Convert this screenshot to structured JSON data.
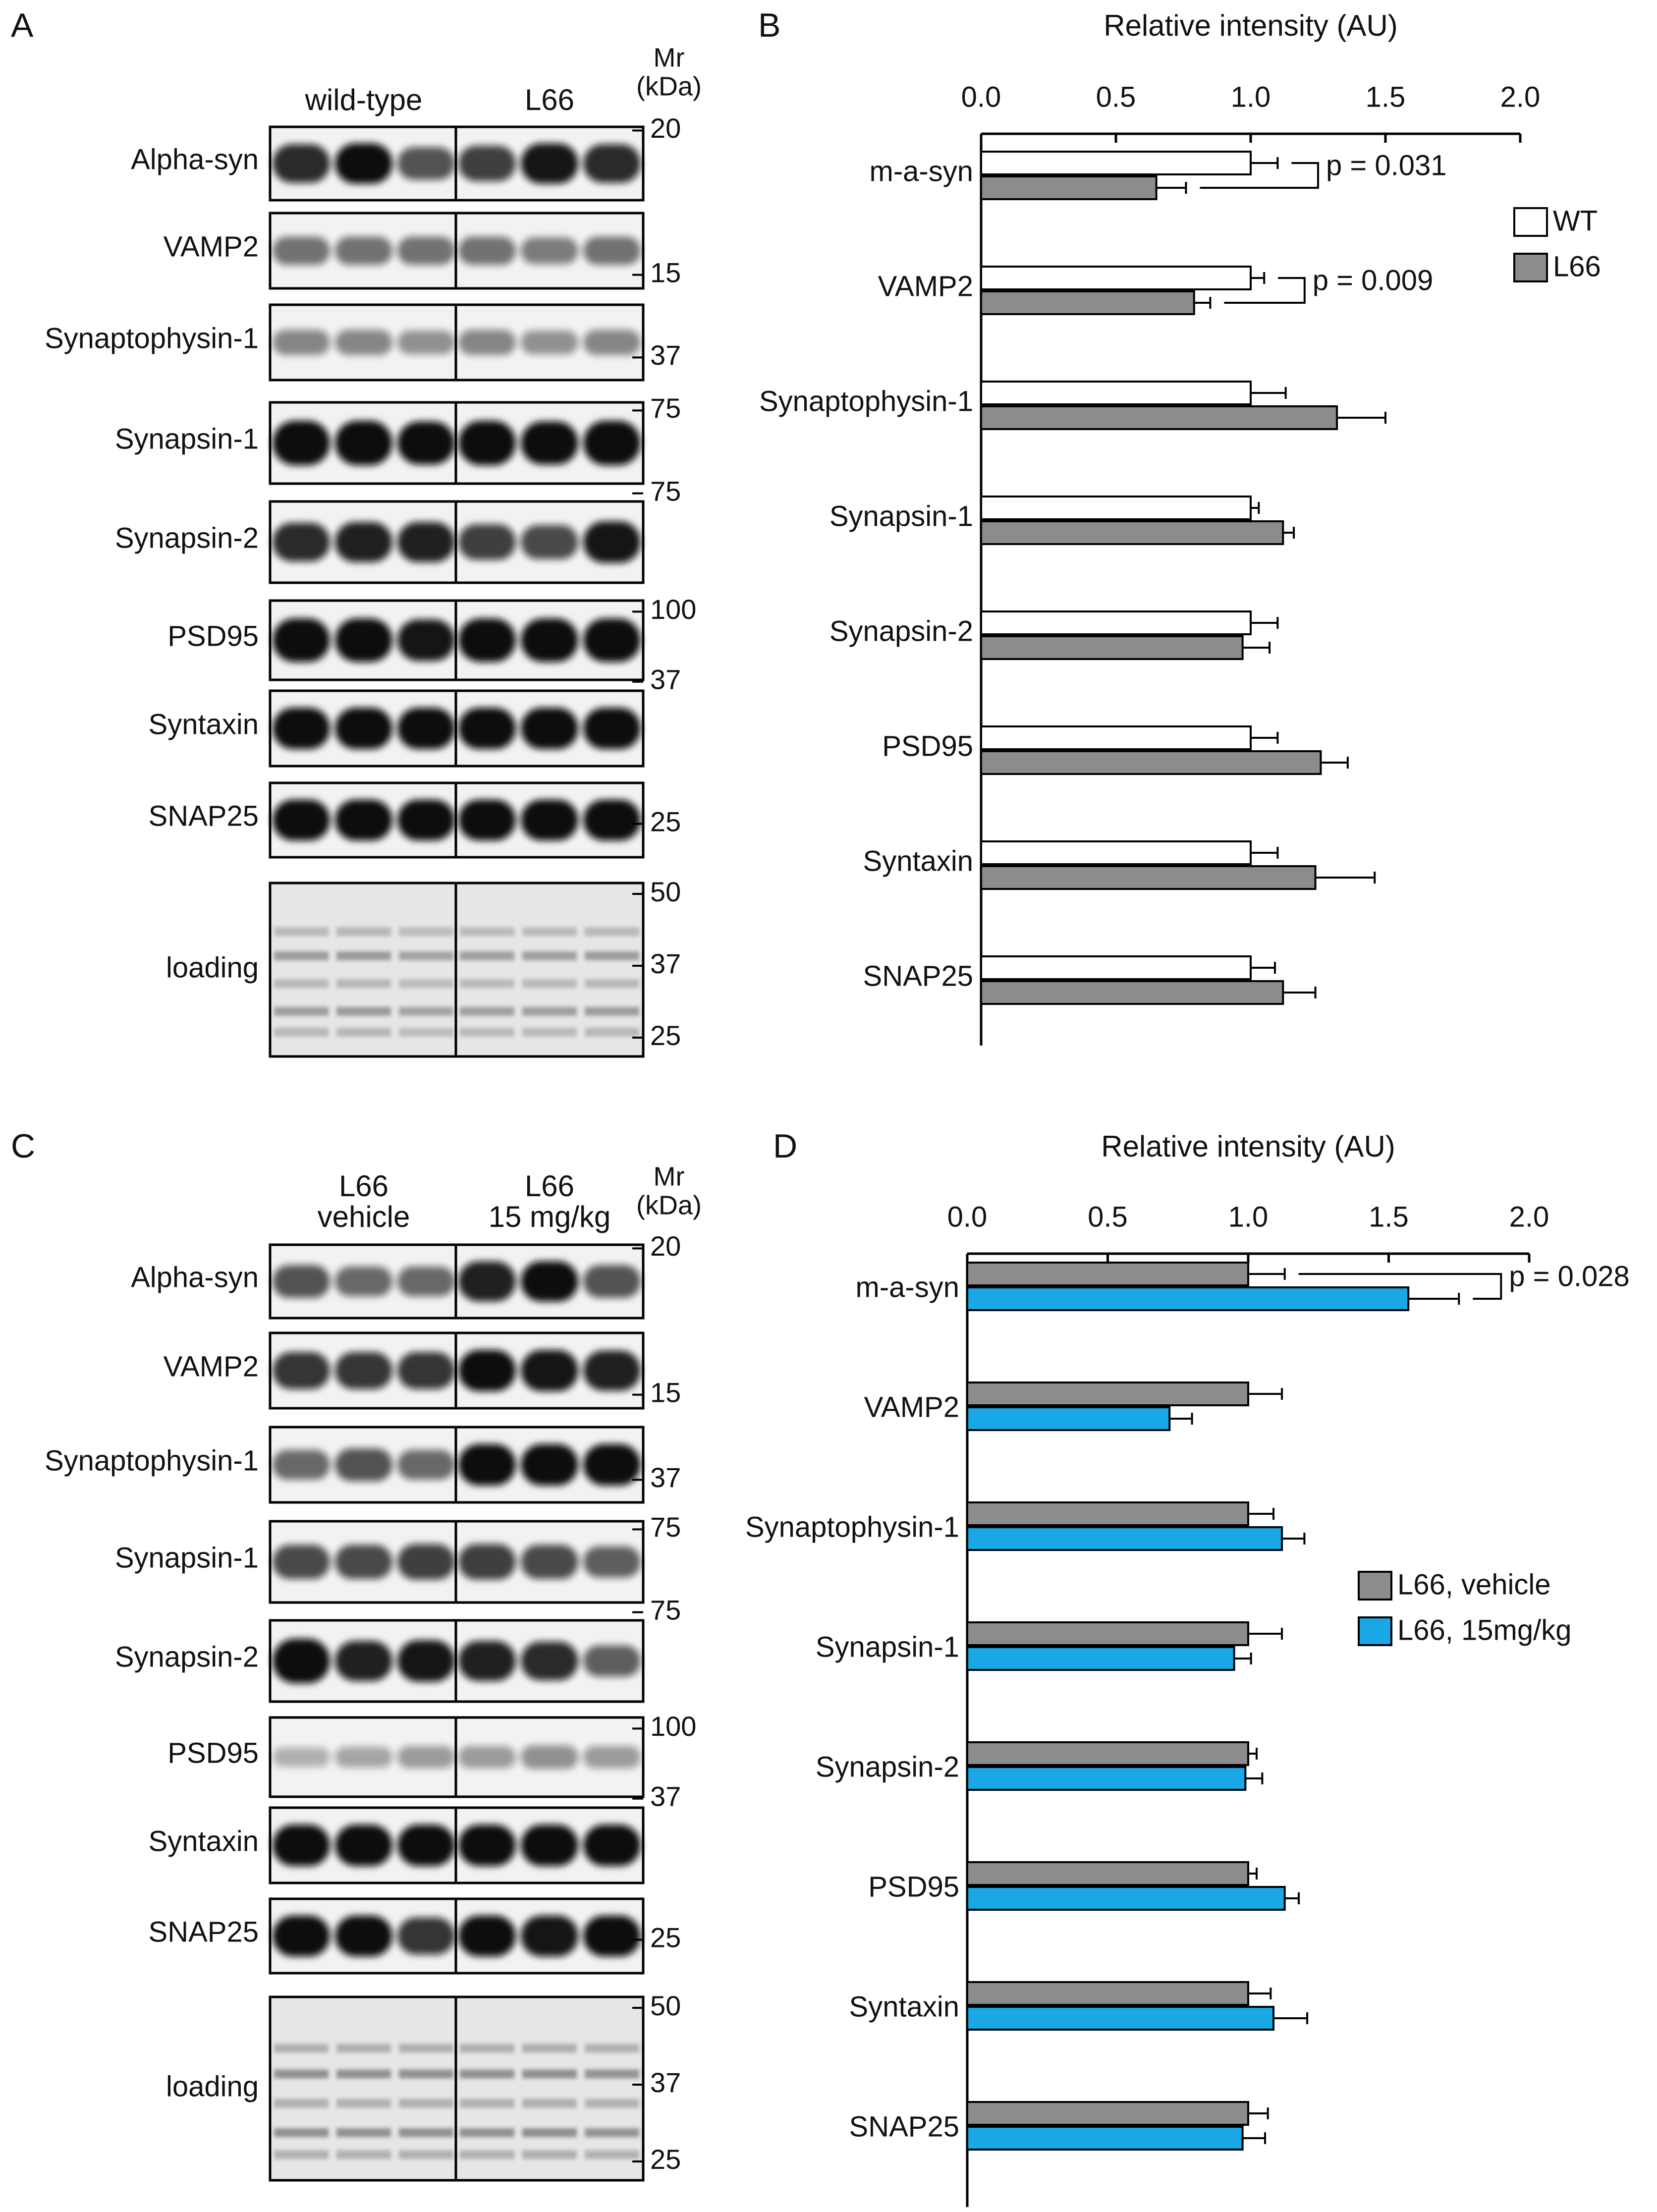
{
  "panels": {
    "a": {
      "letter": "A",
      "groups": [
        "wild-type",
        "L66"
      ],
      "mr_label": "Mr",
      "mr_unit": "(kDa)",
      "blots": [
        {
          "label": "Alpha-syn",
          "markers": [
            "20"
          ]
        },
        {
          "label": "VAMP2",
          "markers": [
            "15"
          ]
        },
        {
          "label": "Synaptophysin-1",
          "markers": [
            "37"
          ]
        },
        {
          "label": "Synapsin-1",
          "markers": [
            "75"
          ]
        },
        {
          "label": "Synapsin-2",
          "markers": [
            "75"
          ]
        },
        {
          "label": "PSD95",
          "markers": [
            "100"
          ]
        },
        {
          "label": "Syntaxin",
          "markers": [
            "37"
          ]
        },
        {
          "label": "SNAP25",
          "markers": [
            "25"
          ]
        },
        {
          "label": "loading",
          "markers": [
            "50",
            "37",
            "25"
          ]
        }
      ],
      "band_intensity": [
        [
          0.8,
          0.95,
          0.6,
          0.7,
          0.9,
          0.8
        ],
        [
          0.45,
          0.45,
          0.45,
          0.45,
          0.4,
          0.45
        ],
        [
          0.35,
          0.35,
          0.3,
          0.35,
          0.3,
          0.35
        ],
        [
          1,
          1,
          0.95,
          1,
          0.95,
          1
        ],
        [
          0.8,
          0.85,
          0.85,
          0.7,
          0.65,
          0.9
        ],
        [
          1,
          1,
          0.9,
          1,
          1,
          1
        ],
        [
          1,
          1,
          1,
          1,
          1,
          1
        ],
        [
          1,
          1,
          1,
          1,
          1,
          1
        ],
        [
          0.5,
          0.55,
          0.35,
          0.45,
          0.45,
          0.5
        ]
      ]
    },
    "c": {
      "letter": "C",
      "groups": [
        "L66\nvehicle",
        "L66\n15  mg/kg"
      ],
      "mr_label": "Mr",
      "mr_unit": "(kDa)",
      "blots": [
        {
          "label": "Alpha-syn",
          "markers": [
            "20"
          ]
        },
        {
          "label": "VAMP2",
          "markers": [
            "15"
          ]
        },
        {
          "label": "Synaptophysin-1",
          "markers": [
            "37"
          ]
        },
        {
          "label": "Synapsin-1",
          "markers": [
            "75"
          ]
        },
        {
          "label": "Synapsin-2",
          "markers": [
            "75"
          ]
        },
        {
          "label": "PSD95",
          "markers": [
            "100"
          ]
        },
        {
          "label": "Syntaxin",
          "markers": [
            "37"
          ]
        },
        {
          "label": "SNAP25",
          "markers": [
            "25"
          ]
        },
        {
          "label": "loading",
          "markers": [
            "50",
            "37",
            "25"
          ]
        }
      ],
      "band_intensity": [
        [
          0.6,
          0.5,
          0.5,
          0.85,
          1,
          0.6
        ],
        [
          0.75,
          0.75,
          0.75,
          1,
          0.9,
          0.85
        ],
        [
          0.5,
          0.6,
          0.5,
          1,
          0.95,
          1
        ],
        [
          0.65,
          0.65,
          0.7,
          0.7,
          0.65,
          0.55
        ],
        [
          1,
          0.85,
          0.9,
          0.85,
          0.8,
          0.55
        ],
        [
          0.15,
          0.2,
          0.25,
          0.25,
          0.3,
          0.25
        ],
        [
          1,
          1,
          1,
          1,
          1,
          1
        ],
        [
          1,
          0.95,
          0.75,
          1,
          0.9,
          1
        ],
        [
          0.75,
          0.75,
          0.75,
          0.75,
          0.8,
          0.7
        ]
      ]
    }
  },
  "chart_data": [
    {
      "type": "bar",
      "orientation": "horizontal",
      "panel": "B",
      "title": "Relative intensity (AU)",
      "xlim": [
        0.0,
        2.0
      ],
      "xticks": [
        "0.0",
        "0.5",
        "1.0",
        "1.5",
        "2.0"
      ],
      "categories": [
        "m-a-syn",
        "VAMP2",
        "Synaptophysin-1",
        "Synapsin-1",
        "Synapsin-2",
        "PSD95",
        "Syntaxin",
        "SNAP25"
      ],
      "series": [
        {
          "name": "WT",
          "color": "#ffffff",
          "values": [
            1.0,
            1.0,
            1.0,
            1.0,
            1.0,
            1.0,
            1.0,
            1.0
          ],
          "errors": [
            0.1,
            0.05,
            0.13,
            0.03,
            0.1,
            0.1,
            0.1,
            0.09
          ]
        },
        {
          "name": "L66",
          "color": "#8c8c8c",
          "values": [
            0.65,
            0.79,
            1.32,
            1.12,
            0.97,
            1.26,
            1.24,
            1.12
          ],
          "errors": [
            0.11,
            0.06,
            0.18,
            0.04,
            0.1,
            0.1,
            0.22,
            0.12
          ]
        }
      ],
      "annotations": [
        {
          "category": "m-a-syn",
          "text": "p = 0.031"
        },
        {
          "category": "VAMP2",
          "text": "p = 0.009"
        }
      ],
      "legend_position": "top-right"
    },
    {
      "type": "bar",
      "orientation": "horizontal",
      "panel": "D",
      "title": "Relative intensity (AU)",
      "xlim": [
        0.0,
        2.0
      ],
      "xticks": [
        "0.0",
        "0.5",
        "1.0",
        "1.5",
        "2.0"
      ],
      "categories": [
        "m-a-syn",
        "VAMP2",
        "Synaptophysin-1",
        "Synapsin-1",
        "Synapsin-2",
        "PSD95",
        "Syntaxin",
        "SNAP25"
      ],
      "series": [
        {
          "name": "L66, vehicle",
          "color": "#8c8c8c",
          "values": [
            1.0,
            1.0,
            1.0,
            1.0,
            1.0,
            1.0,
            1.0,
            1.0
          ],
          "errors": [
            0.13,
            0.12,
            0.09,
            0.12,
            0.03,
            0.03,
            0.08,
            0.07
          ]
        },
        {
          "name": "L66, 15mg/kg",
          "color": "#1aa7e6",
          "values": [
            1.57,
            0.72,
            1.12,
            0.95,
            0.99,
            1.13,
            1.09,
            0.98
          ],
          "errors": [
            0.18,
            0.08,
            0.08,
            0.06,
            0.06,
            0.05,
            0.12,
            0.08
          ]
        }
      ],
      "annotations": [
        {
          "category": "m-a-syn",
          "text": "p = 0.028"
        }
      ],
      "legend_position": "middle-right"
    }
  ]
}
